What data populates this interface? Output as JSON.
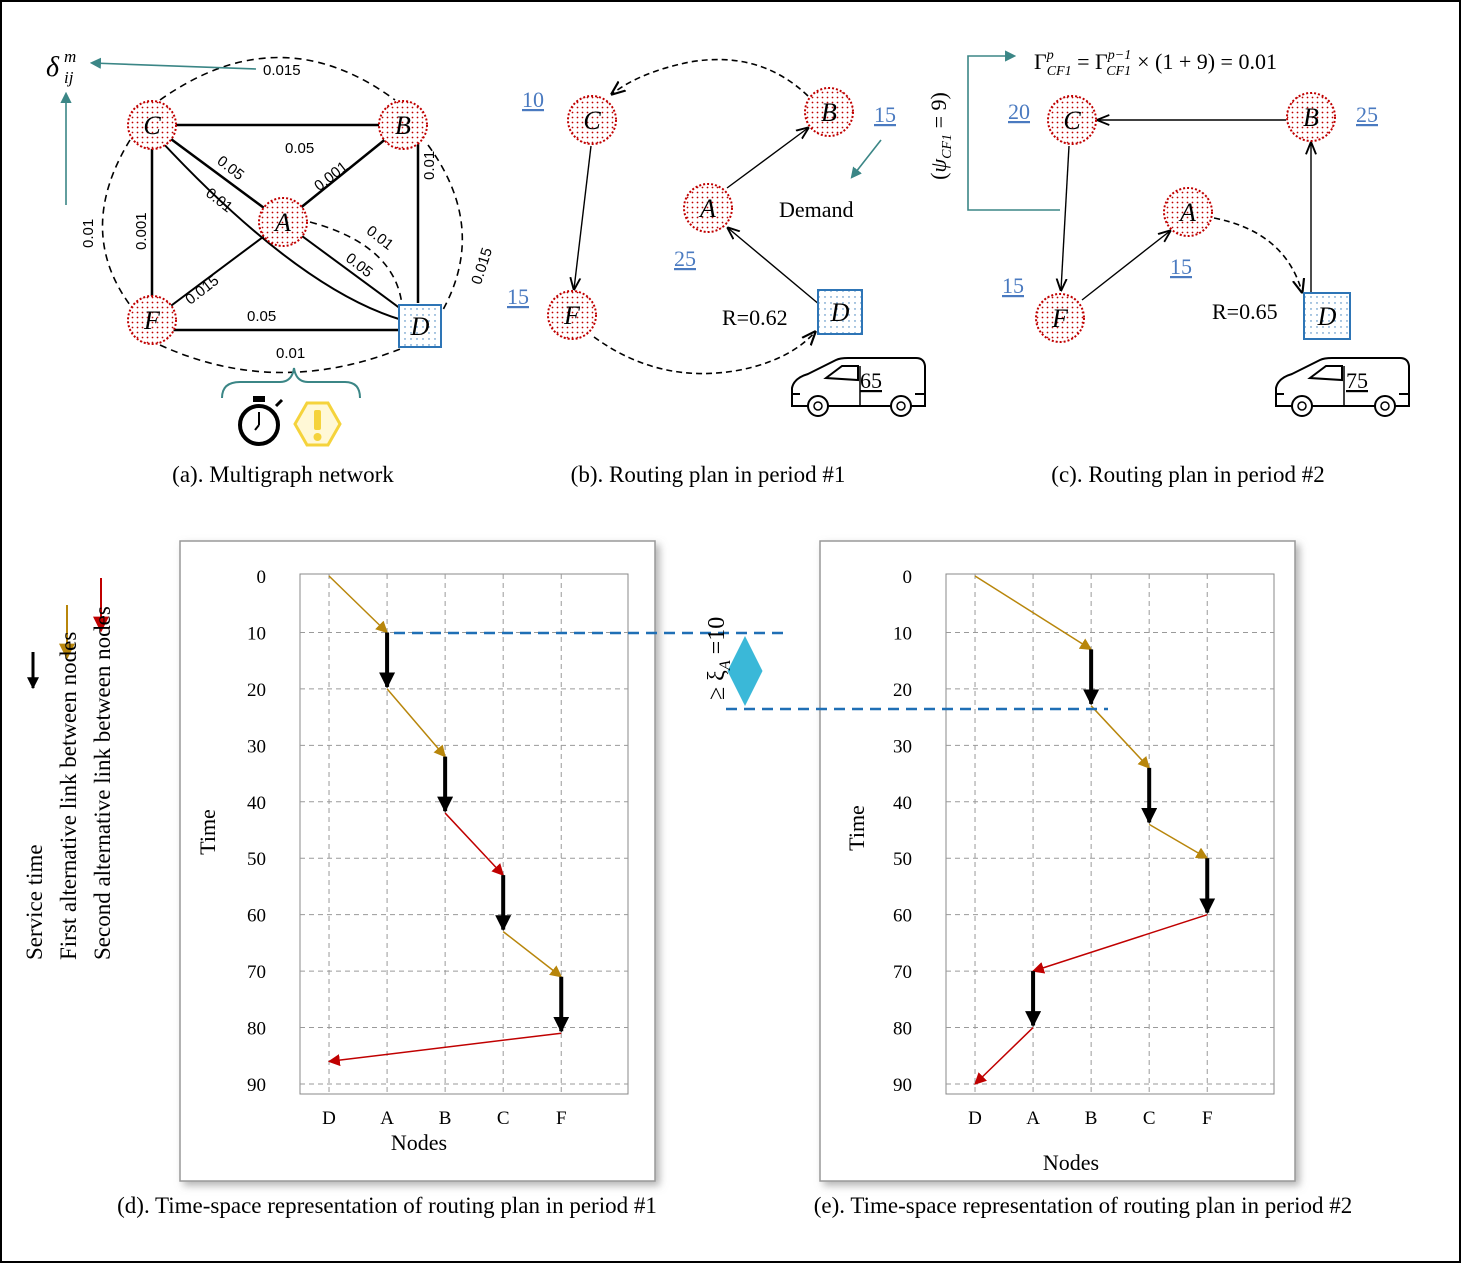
{
  "colors": {
    "node_fill": "#f2d5d5",
    "node_stroke": "#c00000",
    "depot_fill": "#e6f0fa",
    "depot_stroke": "#2e75b6",
    "teal": "#3b8686",
    "underline_blue": "#4a7ac0",
    "first_alt": "#b8860b",
    "second_alt": "#c00000",
    "service": "#000000",
    "dashed_blue": "#1f6fb5",
    "cyan": "#3ab8d8",
    "warning_yellow": "#f5d33c"
  },
  "panel_a": {
    "caption": "(a). Multigraph network",
    "delta_symbol": "δ",
    "delta_sup": "m",
    "delta_sub": "ij",
    "nodes": {
      "C": "C",
      "B": "B",
      "A": "A",
      "F": "F",
      "D": "D"
    },
    "edge_labels": {
      "cb_solid": "0.05",
      "cb_dashed": "0.015",
      "ca": "0.05",
      "ba": "0.001",
      "cd": "0.01",
      "bd": "0.01",
      "cf_solid": "0.001",
      "cf_dashed": "0.01",
      "fa": "0.015",
      "ad_dashed": "0.01",
      "ad_solid": "0.05",
      "bd_dashed": "0.015",
      "fd_solid": "0.05",
      "fd_dashed": "0.01"
    },
    "icons": [
      "stopwatch-icon",
      "warning-icon"
    ]
  },
  "panel_b": {
    "caption": "(b). Routing plan in period #1",
    "nodes": {
      "C": "C",
      "B": "B",
      "A": "A",
      "F": "F",
      "D": "D"
    },
    "demand_C": "10",
    "demand_B": "15",
    "demand_A": "25",
    "demand_F": "15",
    "demand_label": "Demand",
    "reliability": "R=0.62",
    "vehicle_capacity": "65",
    "icons": [
      "van-icon"
    ]
  },
  "panel_c": {
    "caption": "(c). Routing plan in period #2",
    "nodes": {
      "C": "C",
      "B": "B",
      "A": "A",
      "F": "F",
      "D": "D"
    },
    "demand_C": "20",
    "demand_B": "25",
    "demand_A": "15",
    "demand_F": "15",
    "reliability": "R=0.65",
    "vehicle_capacity": "75",
    "formula_gamma": "Γ",
    "formula_sup_p": "p",
    "formula_sub": "CF1",
    "formula_sup_pm1": "p−1",
    "formula_rest": " = ",
    "formula_tail": "× (1 + 9) = 0.01",
    "psi_text": "ψ",
    "psi_sub": "CF1",
    "psi_value": " = 9)",
    "psi_open": "(",
    "icons": [
      "van-icon"
    ]
  },
  "legend": {
    "service": "Service time",
    "first": "First alternative link between nodes",
    "second": "Second alternative link between nodes"
  },
  "xi_label": "≥ ξ",
  "xi_sub": "A",
  "xi_value": " =10",
  "chart_data": [
    {
      "type": "line",
      "caption": "(d). Time-space representation of routing plan in period #1",
      "xlabel": "Nodes",
      "ylabel": "Time",
      "categories": [
        "D",
        "A",
        "B",
        "C",
        "F"
      ],
      "yticks": [
        "0",
        "10",
        "20",
        "30",
        "40",
        "50",
        "60",
        "70",
        "80",
        "90"
      ],
      "ylim": [
        0,
        90
      ],
      "y_inverted": true,
      "grid": true,
      "segments": [
        {
          "kind": "first",
          "from": [
            "D",
            0
          ],
          "to": [
            "A",
            10
          ]
        },
        {
          "kind": "service",
          "from": [
            "A",
            10
          ],
          "to": [
            "A",
            20
          ]
        },
        {
          "kind": "first",
          "from": [
            "A",
            20
          ],
          "to": [
            "B",
            32
          ]
        },
        {
          "kind": "service",
          "from": [
            "B",
            32
          ],
          "to": [
            "B",
            42
          ]
        },
        {
          "kind": "second",
          "from": [
            "B",
            42
          ],
          "to": [
            "C",
            53
          ]
        },
        {
          "kind": "service",
          "from": [
            "C",
            53
          ],
          "to": [
            "C",
            63
          ]
        },
        {
          "kind": "first",
          "from": [
            "C",
            63
          ],
          "to": [
            "F",
            71
          ]
        },
        {
          "kind": "service",
          "from": [
            "F",
            71
          ],
          "to": [
            "F",
            81
          ]
        },
        {
          "kind": "second",
          "from": [
            "F",
            81
          ],
          "to": [
            "D",
            86
          ]
        }
      ]
    },
    {
      "type": "line",
      "caption": "(e). Time-space representation of routing plan in period #2",
      "xlabel": "Nodes",
      "ylabel": "Time",
      "categories": [
        "D",
        "A",
        "B",
        "C",
        "F"
      ],
      "yticks": [
        "0",
        "10",
        "20",
        "30",
        "40",
        "50",
        "60",
        "70",
        "80",
        "90"
      ],
      "ylim": [
        0,
        90
      ],
      "y_inverted": true,
      "grid": true,
      "segments": [
        {
          "kind": "first",
          "from": [
            "D",
            0
          ],
          "to": [
            "B",
            13
          ]
        },
        {
          "kind": "service",
          "from": [
            "B",
            13
          ],
          "to": [
            "B",
            23
          ]
        },
        {
          "kind": "first",
          "from": [
            "B",
            23
          ],
          "to": [
            "C",
            34
          ]
        },
        {
          "kind": "service",
          "from": [
            "C",
            34
          ],
          "to": [
            "C",
            44
          ]
        },
        {
          "kind": "first",
          "from": [
            "C",
            44
          ],
          "to": [
            "F",
            50
          ]
        },
        {
          "kind": "service",
          "from": [
            "F",
            50
          ],
          "to": [
            "F",
            60
          ]
        },
        {
          "kind": "second",
          "from": [
            "F",
            60
          ],
          "to": [
            "A",
            70
          ]
        },
        {
          "kind": "service",
          "from": [
            "A",
            70
          ],
          "to": [
            "A",
            80
          ]
        },
        {
          "kind": "second",
          "from": [
            "A",
            80
          ],
          "to": [
            "D",
            90
          ]
        }
      ]
    }
  ]
}
